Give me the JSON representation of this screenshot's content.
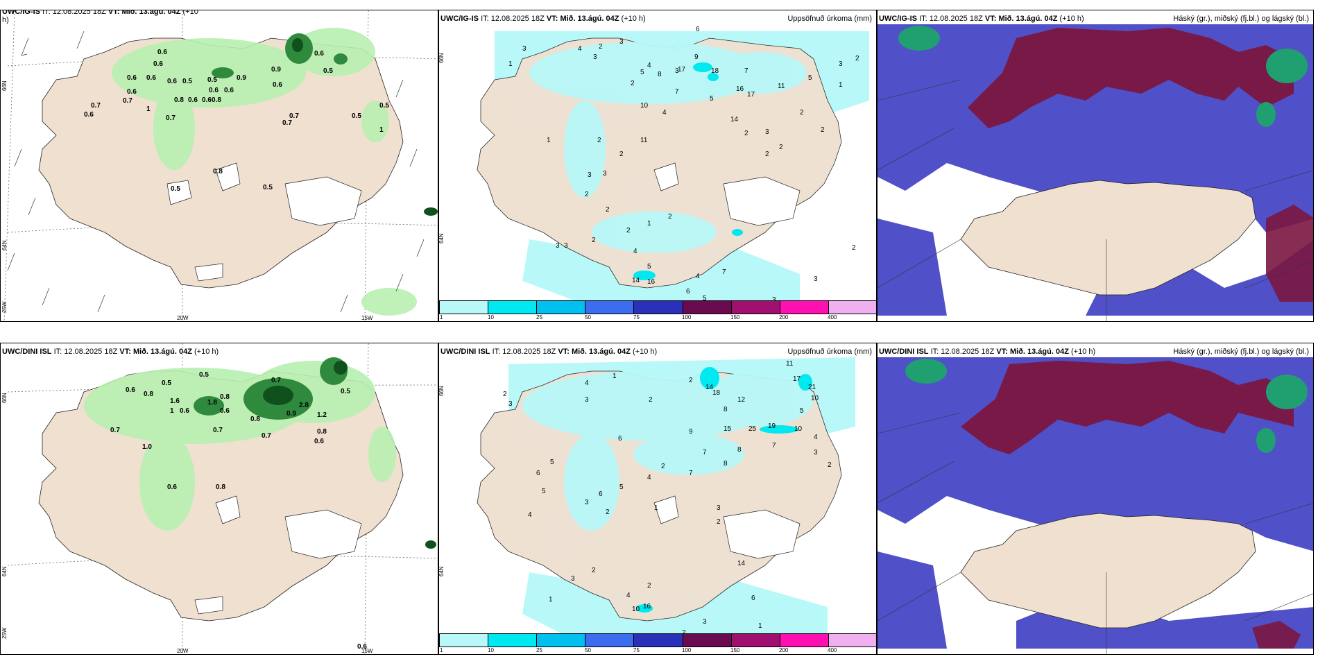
{
  "panels": {
    "top_left": {
      "model": "UWC/IG-IS",
      "it_label": "IT:",
      "it": "12.08.2025 18Z",
      "vt_label": "VT:",
      "vt": "Mið. 13.ágú. 04Z",
      "lead": "(+10",
      "lead2": "h)"
    },
    "top_mid": {
      "model": "UWC/IG-IS",
      "it_label": "IT:",
      "it": "12.08.2025 18Z",
      "vt_label": "VT:",
      "vt": "Mið. 13.ágú. 04Z",
      "lead": "(+10 h)",
      "title": "Uppsöfnuð úrkoma (mm)"
    },
    "top_right": {
      "model": "UWC/IG-IS",
      "it_label": "IT:",
      "it": "12.08.2025 18Z",
      "vt_label": "VT:",
      "vt": "Mið. 13.ágú. 04Z",
      "lead": "(+10 h)",
      "title": "Háský (gr.), miðský (fj.bl.) og lágský (bl.)"
    },
    "bot_left": {
      "model": "UWC/DINI ISL",
      "it_label": "IT:",
      "it": "12.08.2025 18Z",
      "vt_label": "VT:",
      "vt": "Mið. 13.ágú. 04Z",
      "lead": "(+10 h)"
    },
    "bot_mid": {
      "model": "UWC/DINI ISL",
      "it_label": "IT:",
      "it": "12.08.2025 18Z",
      "vt_label": "VT:",
      "vt": "Mið. 13.ágú. 04Z",
      "lead": "(+10 h)",
      "title": "Uppsöfnuð úrkoma (mm)"
    },
    "bot_right": {
      "model": "UWC/DINI ISL",
      "it_label": "IT:",
      "it": "12.08.2025 18Z",
      "vt_label": "VT:",
      "vt": "Mið. 13.ágú. 04Z",
      "lead": "(+10 h)",
      "title": "Háský (gr.), miðský (fj.bl.) og lágský (bl.)"
    }
  },
  "axes": {
    "lat_top": "66N",
    "lat_bottom": "64N",
    "lon_left": "25W",
    "lon_mid": "20W",
    "lon_right": "15W"
  },
  "colorbar": {
    "ticks": [
      "1",
      "10",
      "25",
      "50",
      "75",
      "100",
      "150",
      "200",
      "400"
    ],
    "colors": [
      "#b8f8f8",
      "#00e8f0",
      "#00c0f0",
      "#3c6cf0",
      "#2a30b8",
      "#6a0a50",
      "#a0106e",
      "#ff10b0",
      "#f0b0f0"
    ]
  },
  "colors": {
    "land": "#efe0d0",
    "precip_light": "#b8f8f8",
    "precip_mid": "#00e8f0",
    "rain_light": "#b8f0b0",
    "rain_dark": "#10501c",
    "low_cloud": "#5050c8",
    "mid_cloud": "#7a1640",
    "high_cloud": "#20a070"
  },
  "labels": {
    "top_left": [
      "0.6",
      "0.7",
      "0.5",
      "0.6",
      "0.6",
      "0.9",
      "0.6",
      "0.5",
      "0.6",
      "0.6",
      "0.8",
      "0.6",
      "0.6",
      "0.8",
      "0.7",
      "0.6",
      "1",
      "0.7",
      "0.6",
      "0.7",
      "0.5",
      "0.6",
      "0.9",
      "0.6",
      "0.5",
      "0.7",
      "0.5",
      "0.6",
      "1",
      "0.8",
      "0.5",
      "0.5"
    ],
    "bot_left": [
      "0.6",
      "0.8",
      "0.5",
      "0.5",
      "1.6",
      "0.6",
      "1",
      "0.7",
      "1.8",
      "0.8",
      "0.6",
      "0.7",
      "0.7",
      "2.8",
      "0.9",
      "1.2",
      "0.8",
      "0.6",
      "0.8",
      "1.0",
      "0.7",
      "0.6",
      "0.8",
      "0.5",
      "0.6"
    ],
    "top_mid": [
      "3",
      "2",
      "3",
      "1",
      "4",
      "3",
      "6",
      "5",
      "4",
      "2",
      "3",
      "8",
      "9",
      "7",
      "17",
      "18",
      "16",
      "17",
      "11",
      "7",
      "5",
      "3",
      "2",
      "2",
      "1",
      "14",
      "2",
      "2",
      "3",
      "2",
      "5",
      "2",
      "11",
      "10",
      "4",
      "2",
      "2",
      "1",
      "3",
      "3",
      "2",
      "2",
      "2",
      "1",
      "2",
      "3",
      "3",
      "2",
      "4",
      "5",
      "14",
      "16",
      "4",
      "7",
      "6",
      "5",
      "3",
      "2",
      "3"
    ],
    "bot_mid": [
      "2",
      "3",
      "4",
      "1",
      "3",
      "2",
      "2",
      "14",
      "18",
      "8",
      "12",
      "11",
      "17",
      "21",
      "10",
      "7",
      "5",
      "4",
      "3",
      "2",
      "5",
      "6",
      "9",
      "15",
      "25",
      "19",
      "10",
      "7",
      "8",
      "2",
      "4",
      "5",
      "6",
      "3",
      "2",
      "1",
      "4",
      "5",
      "6",
      "7",
      "8",
      "3",
      "2",
      "14",
      "16",
      "4",
      "2",
      "3",
      "2",
      "1",
      "2",
      "1",
      "10",
      "6",
      "3"
    ]
  }
}
